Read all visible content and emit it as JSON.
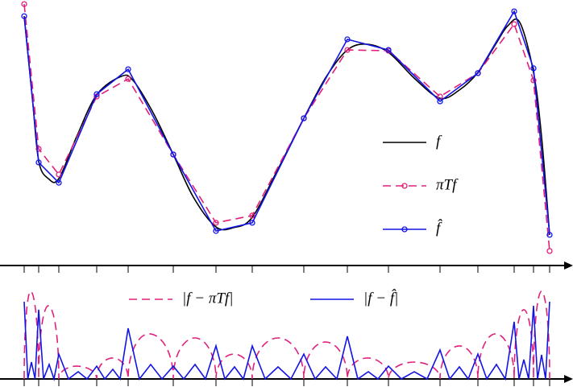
{
  "chart_data": [
    {
      "type": "line",
      "xlim": [
        0,
        652
      ],
      "ylim": [
        0,
        110
      ],
      "xticks": [
        0,
        18,
        43,
        90,
        129,
        185,
        238,
        283,
        347,
        401,
        452,
        516,
        563,
        608,
        632,
        652
      ],
      "legend": "right",
      "series": [
        {
          "name": "f",
          "color": "#000000",
          "dash": false,
          "markers": false,
          "curve": "spline",
          "x": [
            0,
            10,
            18,
            30,
            43,
            65,
            90,
            120,
            135,
            160,
            185,
            210,
            238,
            260,
            283,
            315,
            347,
            375,
            401,
            425,
            452,
            485,
            516,
            540,
            563,
            585,
            600,
            615,
            632,
            642,
            652
          ],
          "values": [
            103.3,
            70,
            43.3,
            36,
            36,
            53.3,
            70.7,
            78.3,
            76.7,
            63.3,
            46,
            28.3,
            16,
            15.7,
            20,
            40,
            61,
            78.3,
            89.3,
            91.7,
            88.3,
            77.3,
            69.3,
            72.7,
            80,
            91.7,
            99.3,
            100.7,
            80,
            53.3,
            12.7
          ]
        },
        {
          "name": "πTf",
          "color": "#e0207a",
          "dash": true,
          "markers": true,
          "curve": "linear",
          "x": [
            0,
            18,
            43,
            90,
            129,
            185,
            238,
            283,
            347,
            401,
            452,
            516,
            563,
            608,
            632,
            652
          ],
          "values": [
            108.3,
            48.3,
            37.7,
            70,
            77.3,
            46,
            17.7,
            20.7,
            61,
            89.3,
            89,
            70,
            79.7,
            100,
            76.7,
            6
          ]
        },
        {
          "name": "f̂",
          "color": "#1414e6",
          "dash": false,
          "markers": true,
          "curve": "linear",
          "x": [
            0,
            18,
            43,
            90,
            129,
            185,
            238,
            283,
            347,
            401,
            452,
            516,
            563,
            608,
            632,
            652
          ],
          "values": [
            103.3,
            42.7,
            34.3,
            71,
            81.3,
            46,
            14.3,
            17.7,
            61,
            93.7,
            89.3,
            68,
            79.7,
            105.3,
            81.7,
            12.7
          ]
        }
      ]
    },
    {
      "type": "line",
      "xlim": [
        0,
        652
      ],
      "ylim": [
        0,
        40
      ],
      "xticks": [
        0,
        18,
        43,
        90,
        129,
        185,
        238,
        283,
        347,
        401,
        452,
        516,
        563,
        608,
        632,
        652
      ],
      "legend": "top",
      "series": [
        {
          "name": "|f − πTf|",
          "color": "#e0207a",
          "dash": true,
          "markers": false,
          "curve": "arcs",
          "x": [
            0,
            8,
            18,
            30,
            43,
            65,
            90,
            110,
            129,
            155,
            185,
            212,
            238,
            260,
            283,
            315,
            347,
            374,
            401,
            426,
            452,
            484,
            516,
            540,
            563,
            585,
            608,
            620,
            632,
            642,
            652
          ],
          "values": [
            0,
            36.3,
            0,
            30.3,
            0,
            5.3,
            0,
            8.7,
            0,
            18.7,
            0,
            17,
            0,
            10.3,
            0,
            17,
            0,
            15.3,
            0,
            8.7,
            0,
            7,
            0,
            13.7,
            0,
            18.7,
            0,
            28.7,
            0,
            36.3,
            0
          ]
        },
        {
          "name": "|f − f̂|",
          "color": "#1414e6",
          "dash": false,
          "markers": false,
          "curve": "linear",
          "x": [
            0,
            4.5,
            9,
            13.5,
            18,
            24,
            31,
            37,
            43,
            55,
            67,
            78,
            90,
            100,
            110,
            119,
            129,
            143,
            157,
            171,
            185,
            198,
            212,
            225,
            238,
            249,
            261,
            272,
            283,
            299,
            315,
            331,
            347,
            361,
            374,
            388,
            401,
            414,
            427,
            439,
            452,
            468,
            484,
            500,
            516,
            528,
            540,
            551,
            563,
            574,
            586,
            597,
            608,
            614,
            620,
            626,
            632,
            637,
            642,
            647,
            652
          ],
          "values": [
            32,
            0,
            7,
            0,
            28.7,
            0,
            6,
            0,
            10.3,
            0,
            3,
            0,
            5.3,
            0,
            4,
            0,
            21,
            0,
            6,
            0,
            5.3,
            0,
            6,
            0,
            13.7,
            0,
            5,
            0,
            13.7,
            0,
            5,
            0,
            10.3,
            0,
            5,
            0,
            17.7,
            0,
            3,
            0,
            5.3,
            0,
            3,
            0,
            12,
            0,
            5,
            0,
            10.3,
            0,
            6,
            0,
            23.7,
            0,
            8,
            0,
            30.3,
            0,
            10,
            0,
            32
          ]
        }
      ]
    }
  ]
}
